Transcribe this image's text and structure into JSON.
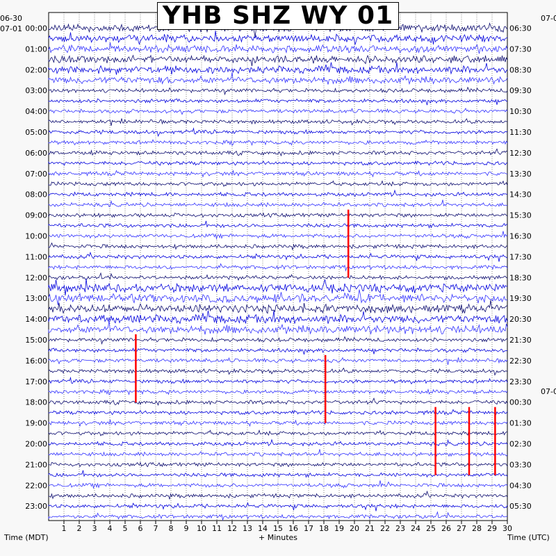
{
  "title": "YHB SHZ WY 01",
  "left_date_top": "06-30",
  "left_date": "07-01",
  "right_date_top": "07-0",
  "right_date_mid": "07-0",
  "xlabel": "+ Minutes",
  "left_axis_label": "Time (MDT)",
  "right_axis_label": "Time (UTC)",
  "colors": {
    "trace_cycle": [
      "#0a0a6e",
      "#0000dd",
      "#3333ff"
    ],
    "event_marker": "#ff0000",
    "grid": "#000000",
    "background": "#ffffff"
  },
  "chart_data": {
    "type": "helicorder",
    "minutes_per_line": 30,
    "lines_per_hour": 2,
    "xlim": [
      0,
      30
    ],
    "x_ticks": [
      "1",
      "2",
      "3",
      "4",
      "5",
      "6",
      "7",
      "8",
      "9",
      "10",
      "11",
      "12",
      "13",
      "14",
      "15",
      "16",
      "17",
      "18",
      "19",
      "20",
      "21",
      "22",
      "23",
      "24",
      "25",
      "26",
      "27",
      "28",
      "29",
      "30"
    ],
    "left_ticks": [
      "00:00",
      "01:00",
      "02:00",
      "03:00",
      "04:00",
      "05:00",
      "06:00",
      "07:00",
      "08:00",
      "09:00",
      "10:00",
      "11:00",
      "12:00",
      "13:00",
      "14:00",
      "15:00",
      "16:00",
      "17:00",
      "18:00",
      "19:00",
      "20:00",
      "21:00",
      "22:00",
      "23:00"
    ],
    "right_ticks": [
      "06:30",
      "07:30",
      "08:30",
      "09:30",
      "10:30",
      "11:30",
      "12:30",
      "13:30",
      "14:30",
      "15:30",
      "16:30",
      "17:30",
      "18:30",
      "19:30",
      "20:30",
      "21:30",
      "22:30",
      "23:30",
      "00:30",
      "01:30",
      "02:30",
      "03:30",
      "04:30",
      "05:30"
    ],
    "events": [
      {
        "label": "",
        "hour_mdt": 9.0,
        "minute": 19.6
      },
      {
        "label": "",
        "hour_mdt": 15.0,
        "minute": 5.7
      },
      {
        "label": "",
        "hour_mdt": 16.0,
        "minute": 18.1
      },
      {
        "label": "",
        "hour_mdt": 18.5,
        "minute": 25.3
      },
      {
        "label": "",
        "hour_mdt": 18.5,
        "minute": 27.5
      },
      {
        "label": "",
        "hour_mdt": 18.5,
        "minute": 29.2
      }
    ],
    "grid": true
  }
}
